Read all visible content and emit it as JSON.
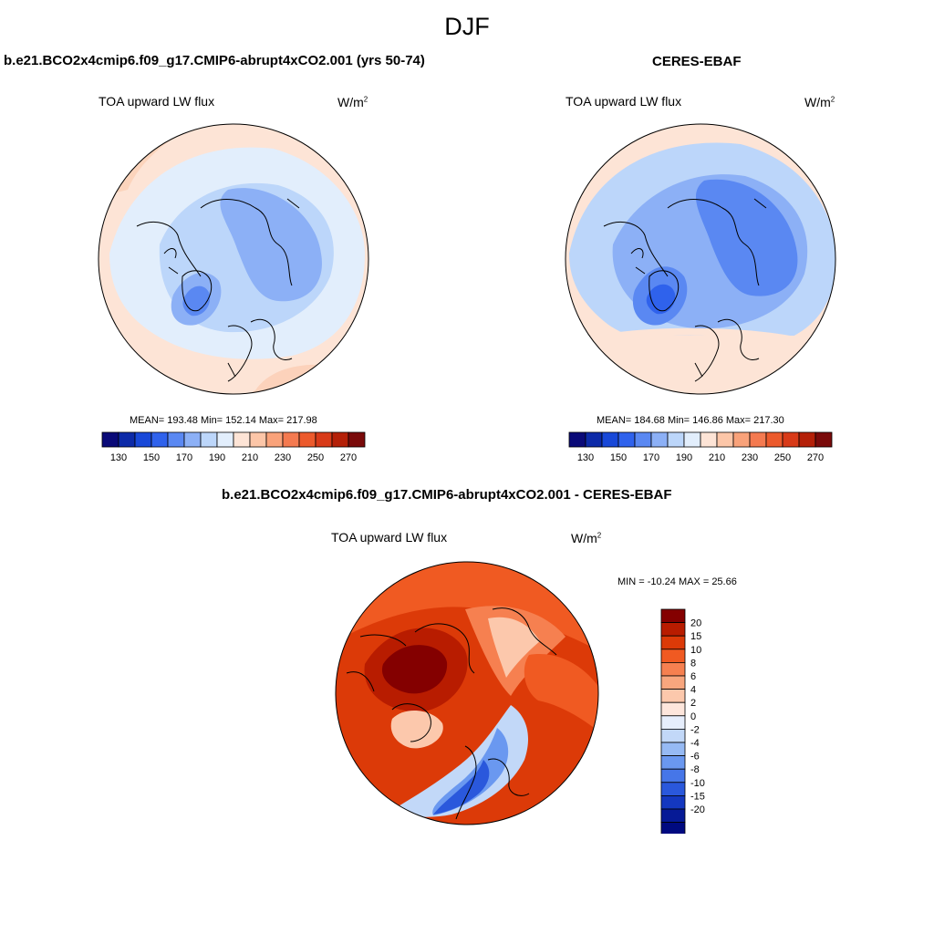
{
  "figure": {
    "title": "DJF"
  },
  "panels": {
    "model": {
      "title": "b.e21.BCO2x4cmip6.f09_g17.CMIP6-abrupt4xCO2.001 (yrs 50-74)",
      "variable": "TOA upward LW flux",
      "units": "W/m",
      "units_exp": "2",
      "stats": "MEAN= 193.48  Min= 152.14  Max= 217.98"
    },
    "obs": {
      "title": "CERES-EBAF",
      "variable": "TOA upward LW flux",
      "units": "W/m",
      "units_exp": "2",
      "stats": "MEAN= 184.68  Min= 146.86  Max= 217.30"
    },
    "diff": {
      "title": "b.e21.BCO2x4cmip6.f09_g17.CMIP6-abrupt4xCO2.001 - CERES-EBAF",
      "variable": "TOA upward LW flux",
      "units": "W/m",
      "units_exp": "2",
      "stats": "MIN = -10.24 MAX =  25.66"
    }
  },
  "colorbars": {
    "abs": {
      "colors": [
        "#0a0a78",
        "#0c2aa8",
        "#1848d8",
        "#2f62ec",
        "#5a88f2",
        "#8cb0f6",
        "#bcd6fa",
        "#e2eefc",
        "#fde4d6",
        "#fcc6a8",
        "#f9a27a",
        "#f47a50",
        "#ec5a2c",
        "#d83a18",
        "#b42008",
        "#7a0a0a"
      ],
      "ticks": [
        "130",
        "150",
        "170",
        "190",
        "210",
        "230",
        "250",
        "270"
      ]
    },
    "diff": {
      "colors": [
        "#840000",
        "#b81c00",
        "#dc3a08",
        "#f05a22",
        "#f68050",
        "#f8a67e",
        "#fcc8ac",
        "#fde6dc",
        "#e6eefc",
        "#c2d8f8",
        "#96baf4",
        "#6a98f0",
        "#4676e8",
        "#2a58dc",
        "#1438c0",
        "#061a96",
        "#000a80"
      ],
      "ticks": [
        "20",
        "15",
        "10",
        "8",
        "6",
        "4",
        "2",
        "0",
        "-2",
        "-4",
        "-6",
        "-8",
        "-10",
        "-15",
        "-20"
      ]
    }
  }
}
